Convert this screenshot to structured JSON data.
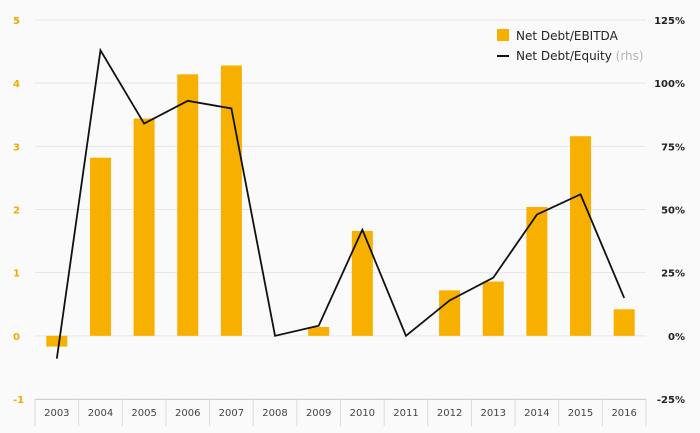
{
  "chart_data": {
    "type": "bar+line",
    "categories": [
      "2003",
      "2004",
      "2005",
      "2006",
      "2007",
      "2008",
      "2009",
      "2010",
      "2011",
      "2012",
      "2013",
      "2014",
      "2015",
      "2016"
    ],
    "series": [
      {
        "name": "Net Debt/EBITDA",
        "type": "bar",
        "axis": "left",
        "values": [
          -0.17,
          2.82,
          3.44,
          4.14,
          4.28,
          0,
          0.14,
          1.66,
          0,
          0.72,
          0.86,
          2.04,
          3.16,
          0.42
        ]
      },
      {
        "name": "Net Debt/Equity",
        "name_suffix": "(rhs)",
        "type": "line",
        "axis": "right",
        "values": [
          -9,
          113,
          84,
          93,
          90,
          0,
          4,
          42,
          0,
          14,
          23,
          48,
          56,
          15
        ]
      }
    ],
    "y_left": {
      "min": -1,
      "max": 5,
      "ticks": [
        "-1",
        "0",
        "1",
        "2",
        "3",
        "4",
        "5"
      ]
    },
    "y_right": {
      "min": -25,
      "max": 125,
      "ticks": [
        "-25%",
        "0%",
        "25%",
        "50%",
        "75%",
        "100%",
        "125%"
      ]
    },
    "grid": true,
    "legend_position": "top-right",
    "colors": {
      "bar": "#f8b000",
      "line": "#111111",
      "left_axis": "#f2a900",
      "grid": "#e6e6e6"
    }
  }
}
